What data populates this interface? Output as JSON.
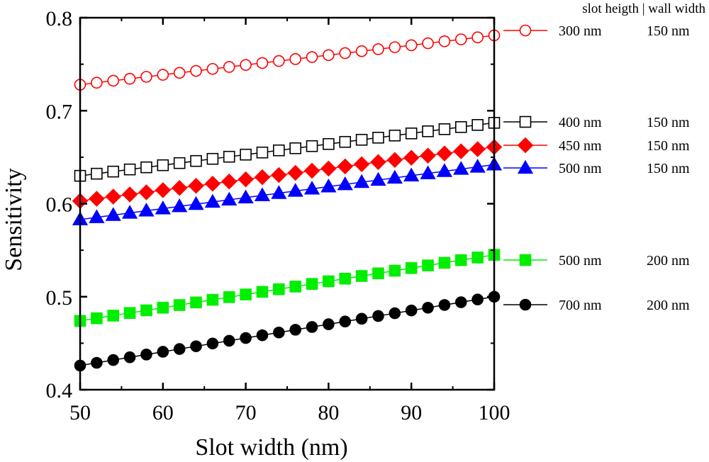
{
  "chart_data": {
    "type": "line",
    "xlabel": "Slot width (nm)",
    "ylabel": "Sensitivity",
    "xlim": [
      50,
      100
    ],
    "ylim": [
      0.4,
      0.8
    ],
    "xticks": [
      50,
      60,
      70,
      80,
      90,
      100
    ],
    "yticks": [
      0.4,
      0.5,
      0.6,
      0.7,
      0.8
    ],
    "xtick_labels": [
      "50",
      "60",
      "70",
      "80",
      "90",
      "100"
    ],
    "ytick_labels": [
      "0.4",
      "0.5",
      "0.6",
      "0.7",
      "0.8"
    ],
    "x": [
      50,
      52,
      54,
      56,
      58,
      60,
      62,
      64,
      66,
      68,
      70,
      72,
      74,
      76,
      78,
      80,
      82,
      84,
      86,
      88,
      90,
      92,
      94,
      96,
      98,
      100
    ],
    "grid": false,
    "legend_placement": "outside-right",
    "legend_header": "slot heigth | wall width",
    "series": [
      {
        "name": "300 nm",
        "wall": "150 nm",
        "color": "#ff0000",
        "marker": "circle-open",
        "start": 0.728,
        "end": 0.781
      },
      {
        "name": "400 nm",
        "wall": "150 nm",
        "color": "#000000",
        "marker": "square-open",
        "start": 0.63,
        "end": 0.687
      },
      {
        "name": "450 nm",
        "wall": "150 nm",
        "color": "#ff0000",
        "marker": "diamond-filled",
        "start": 0.603,
        "end": 0.661
      },
      {
        "name": "500 nm",
        "wall": "150 nm",
        "color": "#0000ff",
        "marker": "triangle-filled",
        "start": 0.583,
        "end": 0.642
      },
      {
        "name": "500 nm",
        "wall": "200 nm",
        "color": "#00ee00",
        "marker": "square-filled",
        "start": 0.474,
        "end": 0.545
      },
      {
        "name": "700 nm",
        "wall": "200 nm",
        "color": "#000000",
        "marker": "circle-filled",
        "start": 0.426,
        "end": 0.5
      }
    ]
  }
}
